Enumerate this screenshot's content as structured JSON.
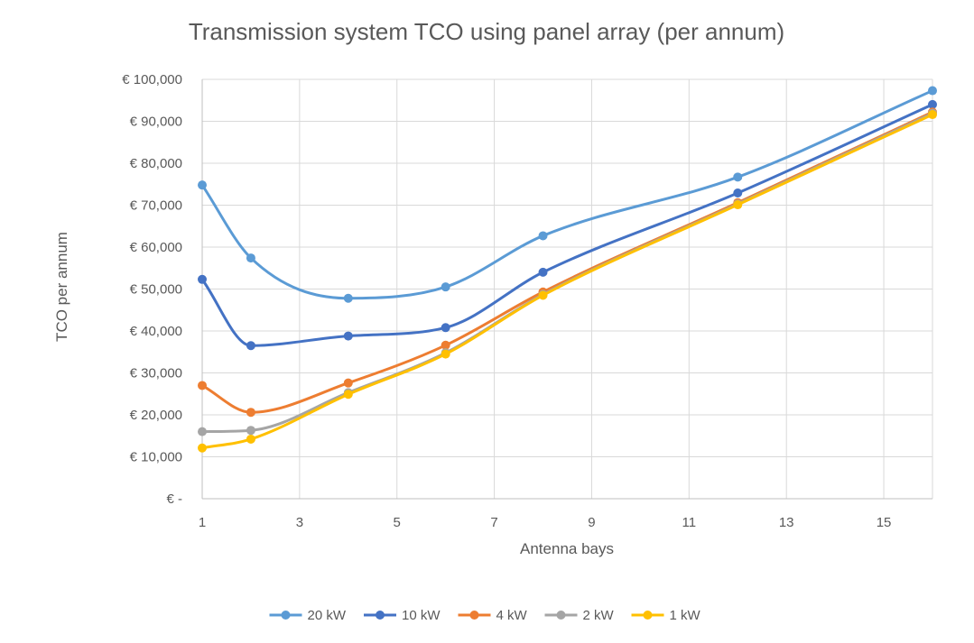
{
  "chart_data": {
    "type": "line",
    "title": "Transmission system TCO using panel array (per annum)",
    "xlabel": "Antenna bays",
    "ylabel": "TCO per annum",
    "xlim": [
      1,
      16
    ],
    "ylim": [
      0,
      100000
    ],
    "x_ticks": [
      1,
      3,
      5,
      7,
      9,
      11,
      13,
      15
    ],
    "x_tick_labels": [
      "1",
      "3",
      "5",
      "7",
      "9",
      "11",
      "13",
      "15"
    ],
    "y_ticks": [
      0,
      10000,
      20000,
      30000,
      40000,
      50000,
      60000,
      70000,
      80000,
      90000,
      100000
    ],
    "y_tick_labels": [
      "€ -",
      "€ 10,000",
      "€ 20,000",
      "€ 30,000",
      "€ 40,000",
      "€ 50,000",
      "€ 60,000",
      "€ 70,000",
      "€ 80,000",
      "€ 90,000",
      "€ 100,000"
    ],
    "grid": true,
    "smooth": true,
    "legend_position": "bottom",
    "x": [
      1,
      2,
      4,
      6,
      8,
      12,
      16
    ],
    "series": [
      {
        "name": "20 kW",
        "color": "#5B9BD5",
        "values": [
          74800,
          57400,
          47800,
          50500,
          62700,
          76700,
          97300
        ]
      },
      {
        "name": "10 kW",
        "color": "#4472C4",
        "values": [
          52300,
          36500,
          38800,
          40800,
          54000,
          72900,
          94000
        ]
      },
      {
        "name": "4 kW",
        "color": "#ED7D31",
        "values": [
          27000,
          20600,
          27600,
          36600,
          49300,
          70600,
          92200
        ]
      },
      {
        "name": "2 kW",
        "color": "#A5A5A5",
        "values": [
          16000,
          16300,
          25300,
          34800,
          48700,
          70300,
          91900
        ]
      },
      {
        "name": "1 kW",
        "color": "#FFC000",
        "values": [
          12100,
          14200,
          24900,
          34500,
          48500,
          70100,
          91600
        ]
      }
    ]
  }
}
